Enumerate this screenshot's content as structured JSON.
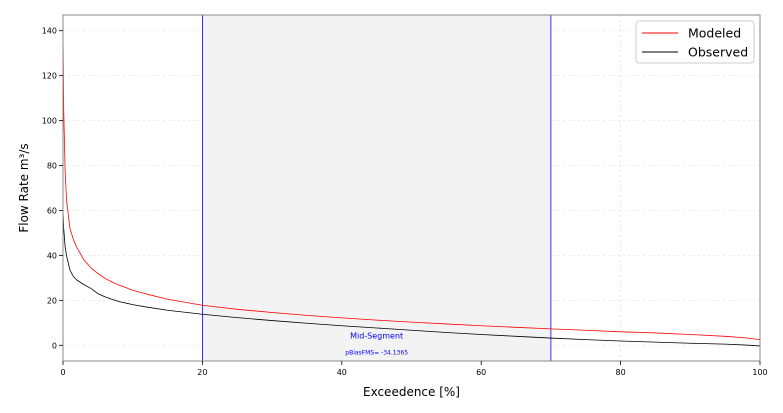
{
  "chart_data": {
    "type": "line",
    "xlabel": "Exceedence [%]",
    "ylabel": "Flow Rate m³/s",
    "xlim": [
      0,
      100
    ],
    "ylim": [
      -7,
      147
    ],
    "grid": true,
    "legend_position": "top-right",
    "x_ticks": [
      0,
      20,
      40,
      60,
      80,
      100
    ],
    "y_ticks": [
      0,
      20,
      40,
      60,
      80,
      100,
      120,
      140
    ],
    "series": [
      {
        "name": "Modeled",
        "color": "#ff0000",
        "x": [
          0,
          0.1,
          0.3,
          0.5,
          0.8,
          1,
          1.5,
          2,
          3,
          4,
          5,
          6,
          7,
          8,
          10,
          12,
          15,
          20,
          25,
          30,
          35,
          40,
          45,
          50,
          55,
          60,
          65,
          70,
          75,
          80,
          85,
          90,
          95,
          98,
          100
        ],
        "values": [
          140,
          105,
          78,
          65,
          57,
          52,
          47,
          43.5,
          38,
          34.5,
          32,
          29.8,
          28.2,
          26.8,
          24.5,
          22.8,
          20.5,
          17.8,
          16,
          14.6,
          13.3,
          12.2,
          11.2,
          10.3,
          9.5,
          8.7,
          8,
          7.3,
          6.7,
          6,
          5.5,
          4.8,
          4,
          3.3,
          2.5
        ]
      },
      {
        "name": "Observed",
        "color": "#000000",
        "x": [
          0,
          0.1,
          0.3,
          0.5,
          0.8,
          1,
          1.5,
          2,
          3,
          4,
          5,
          6,
          7,
          8,
          10,
          12,
          15,
          20,
          25,
          30,
          35,
          40,
          45,
          50,
          55,
          60,
          65,
          70,
          75,
          80,
          85,
          90,
          95,
          98,
          100
        ],
        "values": [
          60,
          52,
          44,
          40,
          36,
          33.5,
          30.5,
          29,
          27,
          25.3,
          23,
          21.6,
          20.5,
          19.5,
          18.1,
          17,
          15.6,
          13.8,
          12.3,
          11,
          9.8,
          8.7,
          7.7,
          6.7,
          5.7,
          4.8,
          4,
          3.2,
          2.5,
          1.9,
          1.4,
          0.9,
          0.5,
          0.1,
          -0.3
        ]
      }
    ],
    "shaded_region": {
      "x_start": 20,
      "x_end": 70,
      "color": "#f2f2f2",
      "border_color": "#0000ff"
    },
    "annotations": [
      {
        "text": "Mid-Segment",
        "x": 45,
        "y": 3
      },
      {
        "text": "pBiasFMS= -34.1365",
        "x": 45,
        "y": -4
      }
    ]
  }
}
